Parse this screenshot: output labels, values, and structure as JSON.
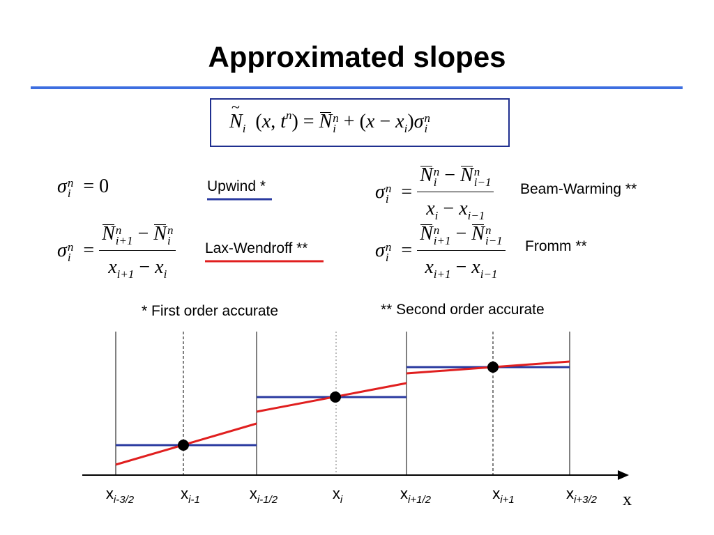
{
  "title": "Approximated slopes",
  "colors": {
    "title_rule": "#3d6ee0",
    "box_border": "#1f2f8f",
    "upwind": "#2a3aa0",
    "lax_wendroff": "#e01f1f",
    "constant_segment": "#2a3aa0",
    "sloped_segment": "#e01f1f",
    "point": "#000000"
  },
  "schemes": {
    "upwind": {
      "name": "Upwind",
      "mark": " *"
    },
    "lax_wendroff": {
      "name": "Lax-Wendroff",
      "mark": " **"
    },
    "beam_warming": {
      "name": "Beam-Warming",
      "mark": " **"
    },
    "fromm": {
      "name": "Fromm",
      "mark": " **"
    }
  },
  "notes": {
    "first_order": "* First order accurate",
    "second_order": "** Second order accurate"
  },
  "axis": {
    "name": "x",
    "ticks": [
      {
        "base": "x",
        "sub": "i-3/2"
      },
      {
        "base": "x",
        "sub": "i-1"
      },
      {
        "base": "x",
        "sub": "i-1/2"
      },
      {
        "base": "x",
        "sub": "i"
      },
      {
        "base": "x",
        "sub": "i+1/2"
      },
      {
        "base": "x",
        "sub": "i+1"
      },
      {
        "base": "x",
        "sub": "i+3/2"
      }
    ]
  },
  "icons": {
    "arrow": "arrow-right-icon"
  }
}
